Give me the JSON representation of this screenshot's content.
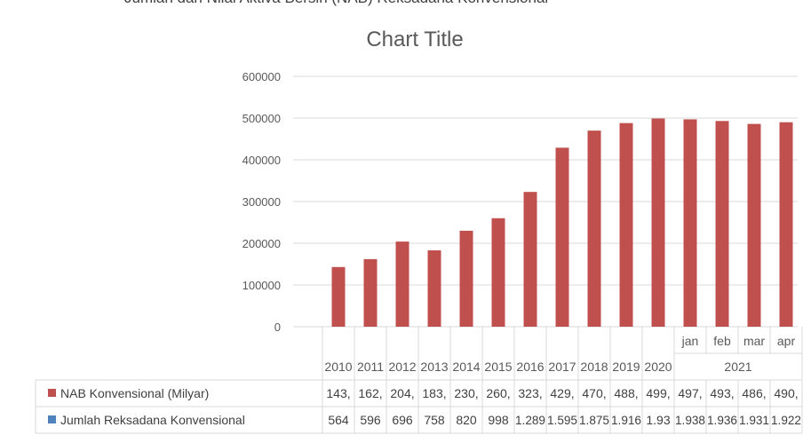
{
  "page_header": "Jumlah dan Nilai Aktiva Bersih (NAB) Reksadana Konvensional",
  "chart_data": {
    "type": "bar",
    "title": "Chart Title",
    "ylim": [
      0,
      600000
    ],
    "yticks": [
      "600000",
      "500000",
      "400000",
      "300000",
      "200000",
      "100000",
      "0"
    ],
    "categories": [
      "2010",
      "2011",
      "2012",
      "2013",
      "2014",
      "2015",
      "2016",
      "2017",
      "2018",
      "2019",
      "2020",
      "jan",
      "feb",
      "mar",
      "apr"
    ],
    "category_group_label": "2021",
    "grid": true,
    "series": [
      {
        "name": "NAB Konvensional (Milyar)",
        "color": "#c0504d",
        "values": [
          143000,
          162000,
          204000,
          183000,
          230000,
          260000,
          323000,
          429000,
          470000,
          488000,
          499000,
          497000,
          493000,
          486000,
          490000
        ],
        "table_labels": [
          "143,",
          "162,",
          "204,",
          "183,",
          "230,",
          "260,",
          "323,",
          "429,",
          "470,",
          "488,",
          "499,",
          "497,",
          "493,",
          "486,",
          "490,"
        ]
      },
      {
        "name": "Jumlah Reksadana Konvensional",
        "color": "#4f81bd",
        "table_labels": [
          "564",
          "596",
          "696",
          "758",
          "820",
          "998",
          "1.289",
          "1.595",
          "1.875",
          "1.916",
          "1.93",
          "1.938",
          "1.936",
          "1.931",
          "1.922"
        ]
      }
    ]
  }
}
